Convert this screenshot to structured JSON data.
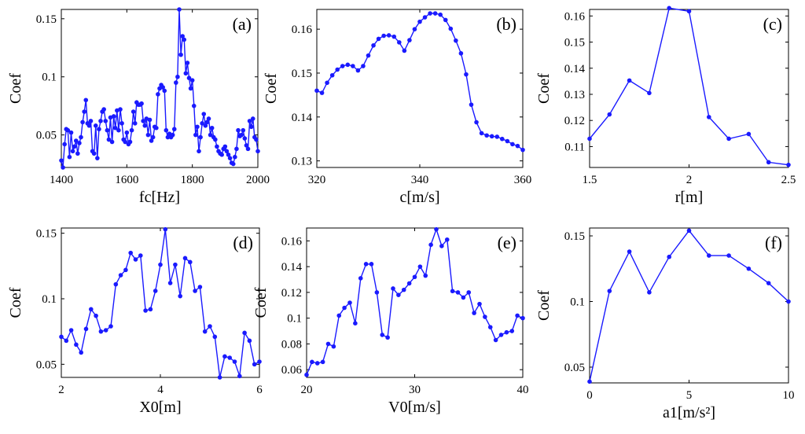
{
  "chart_data": [
    {
      "panel": "(a)",
      "type": "line",
      "xlabel": "fc[Hz]",
      "ylabel": "Coef",
      "xlim": [
        1400,
        2000
      ],
      "ylim": [
        0.022,
        0.158
      ],
      "xticks": [
        1400,
        1600,
        1800,
        2000
      ],
      "xtick_labels": [
        "1400",
        "1600",
        "1800",
        "2000"
      ],
      "yticks": [
        0.05,
        0.1,
        0.15
      ],
      "ytick_labels": [
        "0.05",
        "0.1",
        "0.15"
      ],
      "color": "#1a1aff",
      "x": [
        1400,
        1405,
        1410,
        1415,
        1420,
        1425,
        1430,
        1435,
        1440,
        1445,
        1450,
        1455,
        1460,
        1465,
        1470,
        1475,
        1480,
        1485,
        1490,
        1495,
        1500,
        1505,
        1510,
        1515,
        1520,
        1525,
        1530,
        1535,
        1540,
        1545,
        1550,
        1555,
        1560,
        1565,
        1570,
        1575,
        1580,
        1585,
        1590,
        1595,
        1600,
        1605,
        1610,
        1615,
        1620,
        1625,
        1630,
        1635,
        1640,
        1645,
        1650,
        1655,
        1660,
        1665,
        1670,
        1675,
        1680,
        1685,
        1690,
        1695,
        1700,
        1705,
        1710,
        1715,
        1720,
        1725,
        1730,
        1735,
        1740,
        1745,
        1750,
        1755,
        1760,
        1765,
        1770,
        1775,
        1780,
        1785,
        1790,
        1795,
        1800,
        1805,
        1810,
        1815,
        1820,
        1825,
        1830,
        1835,
        1840,
        1845,
        1850,
        1855,
        1860,
        1865,
        1870,
        1875,
        1880,
        1885,
        1890,
        1895,
        1900,
        1905,
        1910,
        1915,
        1920,
        1925,
        1930,
        1935,
        1940,
        1945,
        1950,
        1955,
        1960,
        1965,
        1970,
        1975,
        1980,
        1985,
        1990,
        1995,
        2000
      ],
      "y": [
        0.028,
        0.022,
        0.042,
        0.055,
        0.054,
        0.031,
        0.052,
        0.036,
        0.04,
        0.045,
        0.034,
        0.043,
        0.048,
        0.061,
        0.07,
        0.08,
        0.06,
        0.058,
        0.062,
        0.036,
        0.034,
        0.058,
        0.03,
        0.055,
        0.062,
        0.07,
        0.072,
        0.062,
        0.054,
        0.046,
        0.065,
        0.044,
        0.066,
        0.056,
        0.071,
        0.054,
        0.072,
        0.06,
        0.046,
        0.044,
        0.052,
        0.042,
        0.044,
        0.054,
        0.07,
        0.06,
        0.078,
        0.076,
        0.076,
        0.077,
        0.062,
        0.058,
        0.064,
        0.05,
        0.063,
        0.045,
        0.048,
        0.057,
        0.056,
        0.085,
        0.09,
        0.093,
        0.091,
        0.088,
        0.054,
        0.048,
        0.051,
        0.048,
        0.05,
        0.055,
        0.095,
        0.1,
        0.158,
        0.119,
        0.135,
        0.132,
        0.103,
        0.112,
        0.099,
        0.09,
        0.097,
        0.075,
        0.05,
        0.057,
        0.036,
        0.048,
        0.06,
        0.068,
        0.058,
        0.061,
        0.064,
        0.05,
        0.056,
        0.048,
        0.046,
        0.04,
        0.036,
        0.034,
        0.033,
        0.038,
        0.04,
        0.036,
        0.033,
        0.03,
        0.026,
        0.025,
        0.031,
        0.038,
        0.054,
        0.049,
        0.05,
        0.054,
        0.047,
        0.041,
        0.038,
        0.062,
        0.057,
        0.064,
        0.048,
        0.046,
        0.036
      ]
    },
    {
      "panel": "(b)",
      "type": "line",
      "xlabel": "c[m/s]",
      "ylabel": "Coef",
      "xlim": [
        320,
        360
      ],
      "ylim": [
        0.1285,
        0.1645
      ],
      "xticks": [
        320,
        340,
        360
      ],
      "xtick_labels": [
        "320",
        "340",
        "360"
      ],
      "yticks": [
        0.13,
        0.14,
        0.15,
        0.16
      ],
      "ytick_labels": [
        "0.13",
        "0.14",
        "0.15",
        "0.16"
      ],
      "color": "#1a1aff",
      "x": [
        320,
        321,
        322,
        323,
        324,
        325,
        326,
        327,
        328,
        329,
        330,
        331,
        332,
        333,
        334,
        335,
        336,
        337,
        338,
        339,
        340,
        341,
        342,
        343,
        344,
        345,
        346,
        347,
        348,
        349,
        350,
        351,
        352,
        353,
        354,
        355,
        356,
        357,
        358,
        359,
        360
      ],
      "y": [
        0.146,
        0.1455,
        0.1478,
        0.1495,
        0.1508,
        0.1516,
        0.1519,
        0.1516,
        0.1506,
        0.1516,
        0.154,
        0.1563,
        0.1578,
        0.1585,
        0.1586,
        0.1583,
        0.157,
        0.1551,
        0.1575,
        0.16,
        0.1617,
        0.1627,
        0.1636,
        0.1636,
        0.1633,
        0.1621,
        0.1601,
        0.1574,
        0.1545,
        0.1497,
        0.1428,
        0.1388,
        0.1363,
        0.1358,
        0.1356,
        0.1355,
        0.135,
        0.1345,
        0.1338,
        0.1334,
        0.1325
      ]
    },
    {
      "panel": "(c)",
      "type": "line",
      "xlabel": "r[m]",
      "ylabel": "Coef",
      "xlim": [
        1.5,
        2.5
      ],
      "ylim": [
        0.102,
        0.1625
      ],
      "xticks": [
        1.5,
        2,
        2.5
      ],
      "xtick_labels": [
        "1.5",
        "2",
        "2.5"
      ],
      "yticks": [
        0.11,
        0.12,
        0.13,
        0.14,
        0.15,
        0.16
      ],
      "ytick_labels": [
        "0.11",
        "0.12",
        "0.13",
        "0.14",
        "0.15",
        "0.16"
      ],
      "color": "#1a1aff",
      "x": [
        1.5,
        1.6,
        1.7,
        1.8,
        1.9,
        2.0,
        2.1,
        2.2,
        2.3,
        2.4,
        2.5
      ],
      "y": [
        0.113,
        0.1223,
        0.1353,
        0.1305,
        0.163,
        0.1618,
        0.1213,
        0.113,
        0.1148,
        0.104,
        0.103
      ]
    },
    {
      "panel": "(d)",
      "type": "line",
      "xlabel": "X0[m]",
      "ylabel": "Coef",
      "xlim": [
        2,
        6
      ],
      "ylim": [
        0.04,
        0.154
      ],
      "xticks": [
        2,
        4,
        6
      ],
      "xtick_labels": [
        "2",
        "4",
        "6"
      ],
      "yticks": [
        0.05,
        0.1,
        0.15
      ],
      "ytick_labels": [
        "0.05",
        "0.1",
        "0.15"
      ],
      "color": "#1a1aff",
      "x": [
        2.0,
        2.1,
        2.2,
        2.3,
        2.4,
        2.5,
        2.6,
        2.7,
        2.8,
        2.9,
        3.0,
        3.1,
        3.2,
        3.3,
        3.4,
        3.5,
        3.6,
        3.7,
        3.8,
        3.9,
        4.0,
        4.1,
        4.2,
        4.3,
        4.4,
        4.5,
        4.6,
        4.7,
        4.8,
        4.9,
        5.0,
        5.1,
        5.2,
        5.3,
        5.4,
        5.5,
        5.6,
        5.7,
        5.8,
        5.9,
        6.0
      ],
      "y": [
        0.071,
        0.068,
        0.076,
        0.065,
        0.059,
        0.077,
        0.092,
        0.087,
        0.075,
        0.076,
        0.079,
        0.111,
        0.118,
        0.122,
        0.135,
        0.13,
        0.133,
        0.091,
        0.092,
        0.106,
        0.126,
        0.153,
        0.112,
        0.126,
        0.102,
        0.131,
        0.128,
        0.106,
        0.109,
        0.075,
        0.079,
        0.071,
        0.04,
        0.056,
        0.055,
        0.052,
        0.041,
        0.074,
        0.068,
        0.05,
        0.052
      ]
    },
    {
      "panel": "(e)",
      "type": "line",
      "xlabel": "V0[m/s]",
      "ylabel": "Coef",
      "xlim": [
        20,
        40
      ],
      "ylim": [
        0.054,
        0.17
      ],
      "xticks": [
        20,
        30,
        40
      ],
      "xtick_labels": [
        "20",
        "30",
        "40"
      ],
      "yticks": [
        0.06,
        0.08,
        0.1,
        0.12,
        0.14,
        0.16
      ],
      "ytick_labels": [
        "0.06",
        "0.08",
        "0.1",
        "0.12",
        "0.14",
        "0.16"
      ],
      "color": "#1a1aff",
      "x": [
        20.0,
        20.5,
        21.0,
        21.5,
        22.0,
        22.5,
        23.0,
        23.5,
        24.0,
        24.5,
        25.0,
        25.5,
        26.0,
        26.5,
        27.0,
        27.5,
        28.0,
        28.5,
        29.0,
        29.5,
        30.0,
        30.5,
        31.0,
        31.5,
        32.0,
        32.5,
        33.0,
        33.5,
        34.0,
        34.5,
        35.0,
        35.5,
        36.0,
        36.5,
        37.0,
        37.5,
        38.0,
        38.5,
        39.0,
        39.5,
        40.0
      ],
      "y": [
        0.056,
        0.066,
        0.065,
        0.066,
        0.08,
        0.078,
        0.102,
        0.108,
        0.112,
        0.096,
        0.131,
        0.142,
        0.142,
        0.12,
        0.087,
        0.085,
        0.123,
        0.118,
        0.122,
        0.127,
        0.132,
        0.14,
        0.133,
        0.157,
        0.169,
        0.156,
        0.161,
        0.121,
        0.12,
        0.116,
        0.12,
        0.104,
        0.111,
        0.101,
        0.093,
        0.083,
        0.087,
        0.089,
        0.09,
        0.102,
        0.1
      ]
    },
    {
      "panel": "(f)",
      "type": "line",
      "xlabel": "a1[m/s²]",
      "ylabel": "Coef",
      "xlim": [
        0,
        10
      ],
      "ylim": [
        0.038,
        0.156
      ],
      "xticks": [
        0,
        5,
        10
      ],
      "xtick_labels": [
        "0",
        "5",
        "10"
      ],
      "yticks": [
        0.05,
        0.1,
        0.15
      ],
      "ytick_labels": [
        "0.05",
        "0.1",
        "0.15"
      ],
      "color": "#1a1aff",
      "x": [
        0,
        1,
        2,
        3,
        4,
        5,
        6,
        7,
        8,
        9,
        10
      ],
      "y": [
        0.039,
        0.108,
        0.138,
        0.107,
        0.134,
        0.154,
        0.135,
        0.135,
        0.125,
        0.114,
        0.1
      ]
    }
  ]
}
